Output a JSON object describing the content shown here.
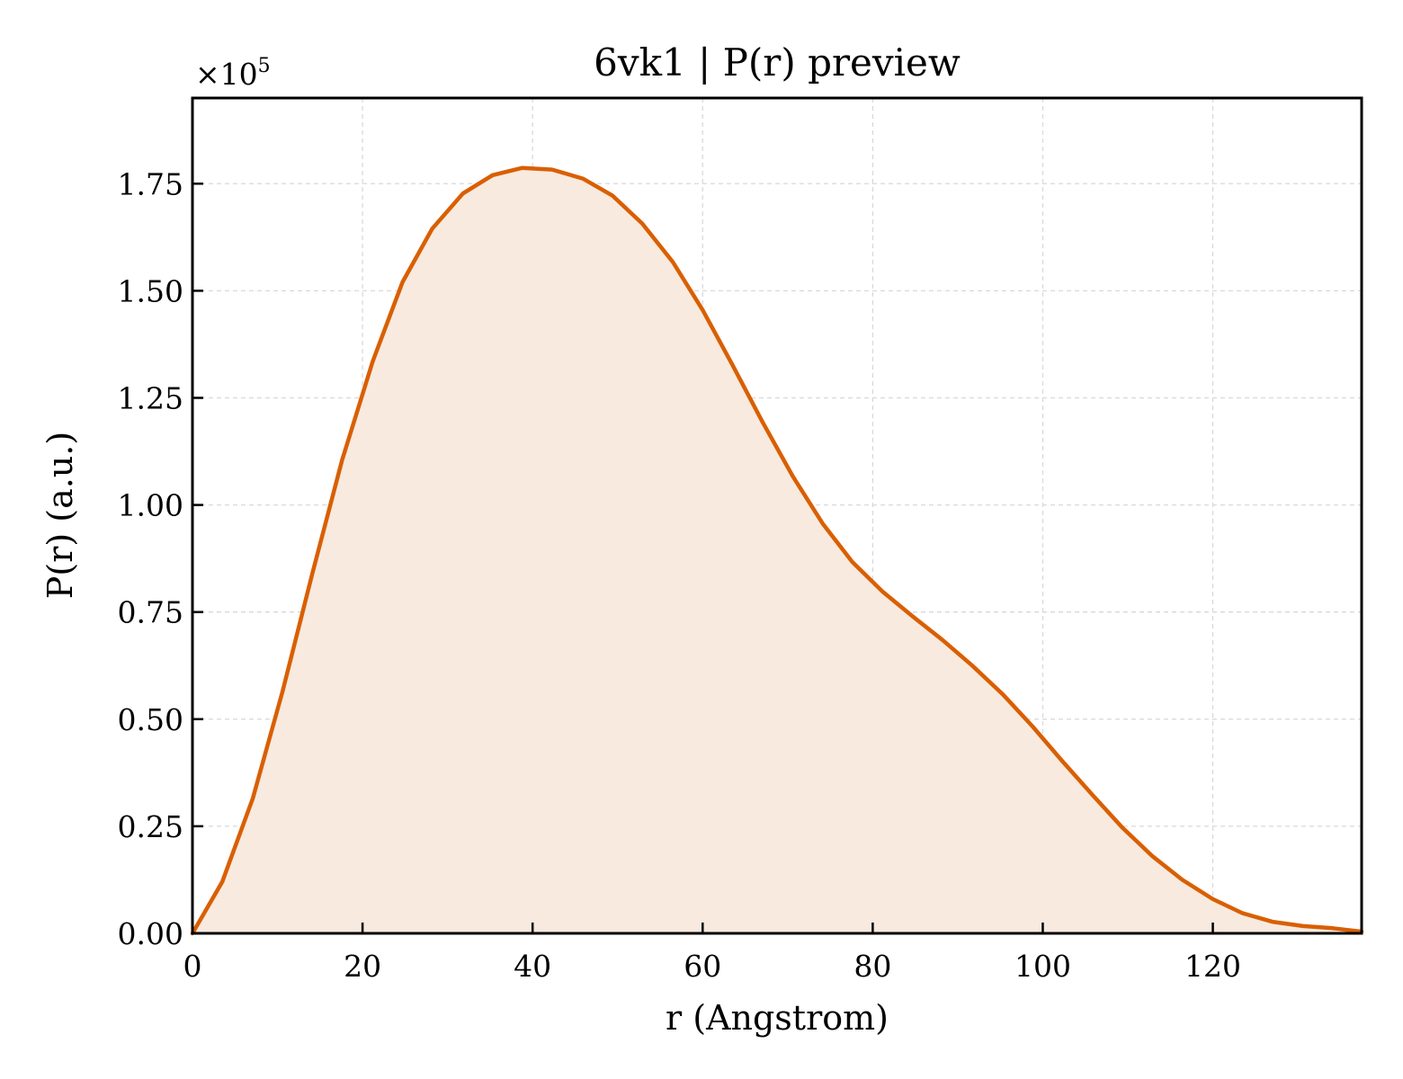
{
  "chart_data": {
    "type": "area",
    "title": "6vk1 | P(r) preview",
    "xlabel": "r (Angstrom)",
    "ylabel": "P(r) (a.u.)",
    "y_multiplier": "×10",
    "y_multiplier_exponent": "5",
    "xlim": [
      0,
      137.5
    ],
    "ylim": [
      0,
      1.95
    ],
    "x_ticks": [
      0,
      20,
      40,
      60,
      80,
      100,
      120
    ],
    "x_tick_labels": [
      "0",
      "20",
      "40",
      "60",
      "80",
      "100",
      "120"
    ],
    "y_ticks": [
      0,
      0.25,
      0.5,
      0.75,
      1.0,
      1.25,
      1.5,
      1.75
    ],
    "y_tick_labels": [
      "0.00",
      "0.25",
      "0.50",
      "0.75",
      "1.00",
      "1.25",
      "1.50",
      "1.75"
    ],
    "grid": true,
    "series": [
      {
        "color": "#d95f02",
        "fill_color": "#f8eadf",
        "x": [
          0,
          3.5,
          7.1,
          10.6,
          14.1,
          17.6,
          21.2,
          24.7,
          28.2,
          31.8,
          35.3,
          38.8,
          42.3,
          45.9,
          49.4,
          52.9,
          56.5,
          60.0,
          63.5,
          67.0,
          70.6,
          74.1,
          77.6,
          81.2,
          84.7,
          88.2,
          91.7,
          95.3,
          98.8,
          102.3,
          105.9,
          109.4,
          112.9,
          116.4,
          120.0,
          123.5,
          127.0,
          130.6,
          134.1,
          137.5
        ],
        "y": [
          0.0,
          0.12,
          0.315,
          0.565,
          0.84,
          1.105,
          1.335,
          1.52,
          1.645,
          1.727,
          1.77,
          1.787,
          1.783,
          1.762,
          1.722,
          1.657,
          1.567,
          1.455,
          1.327,
          1.195,
          1.067,
          0.957,
          0.867,
          0.797,
          0.74,
          0.685,
          0.625,
          0.558,
          0.483,
          0.402,
          0.322,
          0.246,
          0.18,
          0.125,
          0.08,
          0.047,
          0.027,
          0.017,
          0.012,
          0.004
        ]
      }
    ]
  }
}
